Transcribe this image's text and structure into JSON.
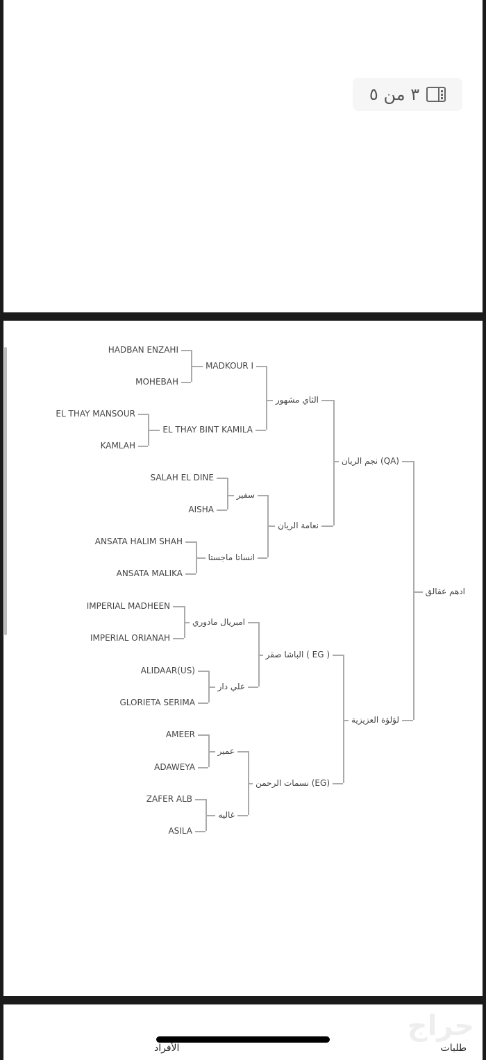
{
  "gallery": {
    "counter": "٣ من ٥",
    "icon": "gallery-panel-icon"
  },
  "pedigree": {
    "gen1": [
      "ادهم عقالق"
    ],
    "gen2": [
      "نجم الريان (QA)",
      "لؤلؤة العزيزية"
    ],
    "gen3": [
      "الثاي مشهور",
      "نعامة الريان",
      "الباشا صقر ( EG )",
      "نسمات الرحمن (EG)"
    ],
    "gen4": [
      "MADKOUR I",
      "EL THAY BINT KAMILA",
      "سفير",
      "انساتا ماجستا",
      "امبريال مادوري",
      "علي دار",
      "عمير",
      "غاليه"
    ],
    "gen5": [
      "HADBAN ENZAHI",
      "MOHEBAH",
      "EL THAY MANSOUR",
      "KAMLAH",
      "SALAH EL DINE",
      "AISHA",
      "ANSATA HALIM SHAH",
      "ANSATA MALIKA",
      "IMPERIAL MADHEEN",
      "IMPERIAL ORIANAH",
      "ALIDAAR(US)",
      "GLORIETA SERIMA",
      "AMEER",
      "ADAWEYA",
      "ZAFER ALB",
      "ASILA"
    ]
  },
  "footer": {
    "logo": "حراج",
    "left_text": "الأفراد",
    "right_text": "طلبات"
  }
}
